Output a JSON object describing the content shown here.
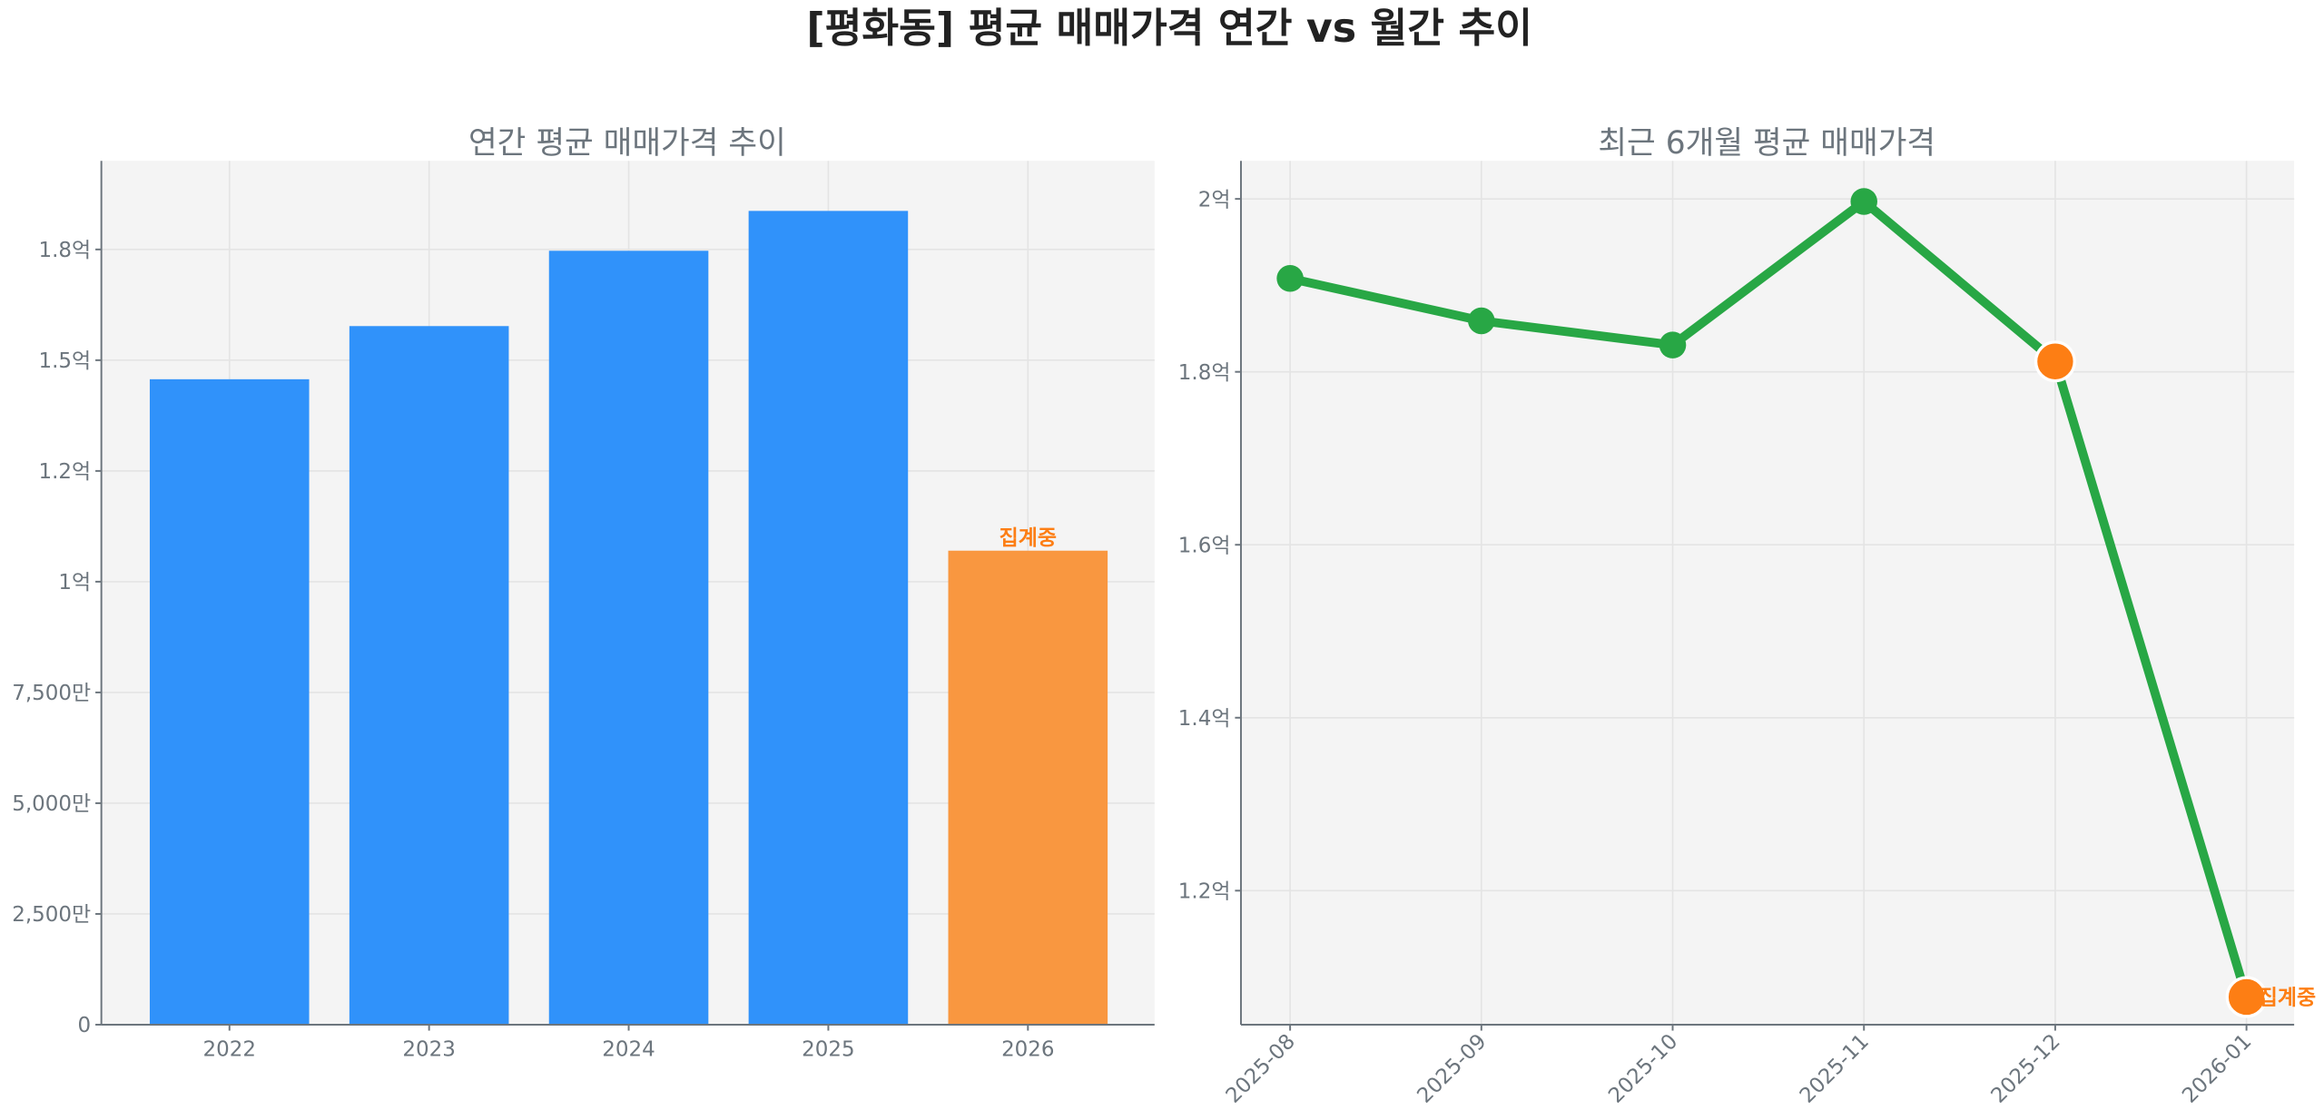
{
  "title": "[평화동] 평균 매매가격 연간 vs 월간 추이",
  "colors": {
    "bar": "#3092fa",
    "bar_pending": "#f99740",
    "line": "#28a745",
    "marker_pending": "#fd7e14",
    "annotation": "#fd7e14",
    "plot_bg": "#f4f4f4"
  },
  "chart_data": [
    {
      "type": "bar",
      "title": "연간 평균 매매가격 추이",
      "categories": [
        "2022",
        "2023",
        "2024",
        "2025",
        "2026"
      ],
      "values": [
        145700000,
        157700000,
        174700000,
        183700000,
        107000000
      ],
      "pending": [
        false,
        false,
        false,
        false,
        true
      ],
      "annotation": "집계중",
      "ylim": [
        0,
        195000000
      ],
      "yticks": [
        0,
        25000000,
        50000000,
        75000000,
        100000000,
        125000000,
        150000000,
        175000000
      ],
      "ytick_labels": [
        "0",
        "2,500만",
        "5,000만",
        "7,500만",
        "1억",
        "1.2억",
        "1.5억",
        "1.8억"
      ],
      "grid": true
    },
    {
      "type": "line",
      "title": "최근 6개월 평균 매매가격",
      "x": [
        "2025-08",
        "2025-09",
        "2025-10",
        "2025-11",
        "2025-12",
        "2026-01"
      ],
      "values": [
        190800000,
        185900000,
        183100000,
        199700000,
        181200000,
        107700000
      ],
      "pending": [
        false,
        false,
        false,
        false,
        true,
        true
      ],
      "annotation": "집계중",
      "ylim": [
        104500000,
        204400000
      ],
      "yticks": [
        120000000,
        140000000,
        160000000,
        180000000,
        200000000
      ],
      "ytick_labels": [
        "1.2억",
        "1.4억",
        "1.6억",
        "1.8억",
        "2억"
      ],
      "grid": true
    }
  ]
}
